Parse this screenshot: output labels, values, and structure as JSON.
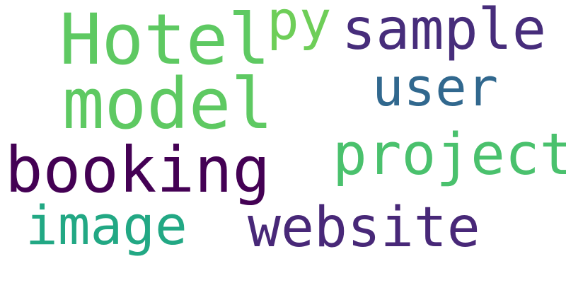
{
  "words": [
    {
      "text": "Hotel",
      "color": "#5ec962"
    },
    {
      "text": "py",
      "color": "#6ece58"
    },
    {
      "text": "sample",
      "color": "#472d7b"
    },
    {
      "text": "model",
      "color": "#5ec962"
    },
    {
      "text": "user",
      "color": "#31688e"
    },
    {
      "text": "booking",
      "color": "#440154"
    },
    {
      "text": "project",
      "color": "#4ac16d"
    },
    {
      "text": "image",
      "color": "#22a884"
    },
    {
      "text": "website",
      "color": "#482878"
    }
  ],
  "background_color": "#ffffff"
}
